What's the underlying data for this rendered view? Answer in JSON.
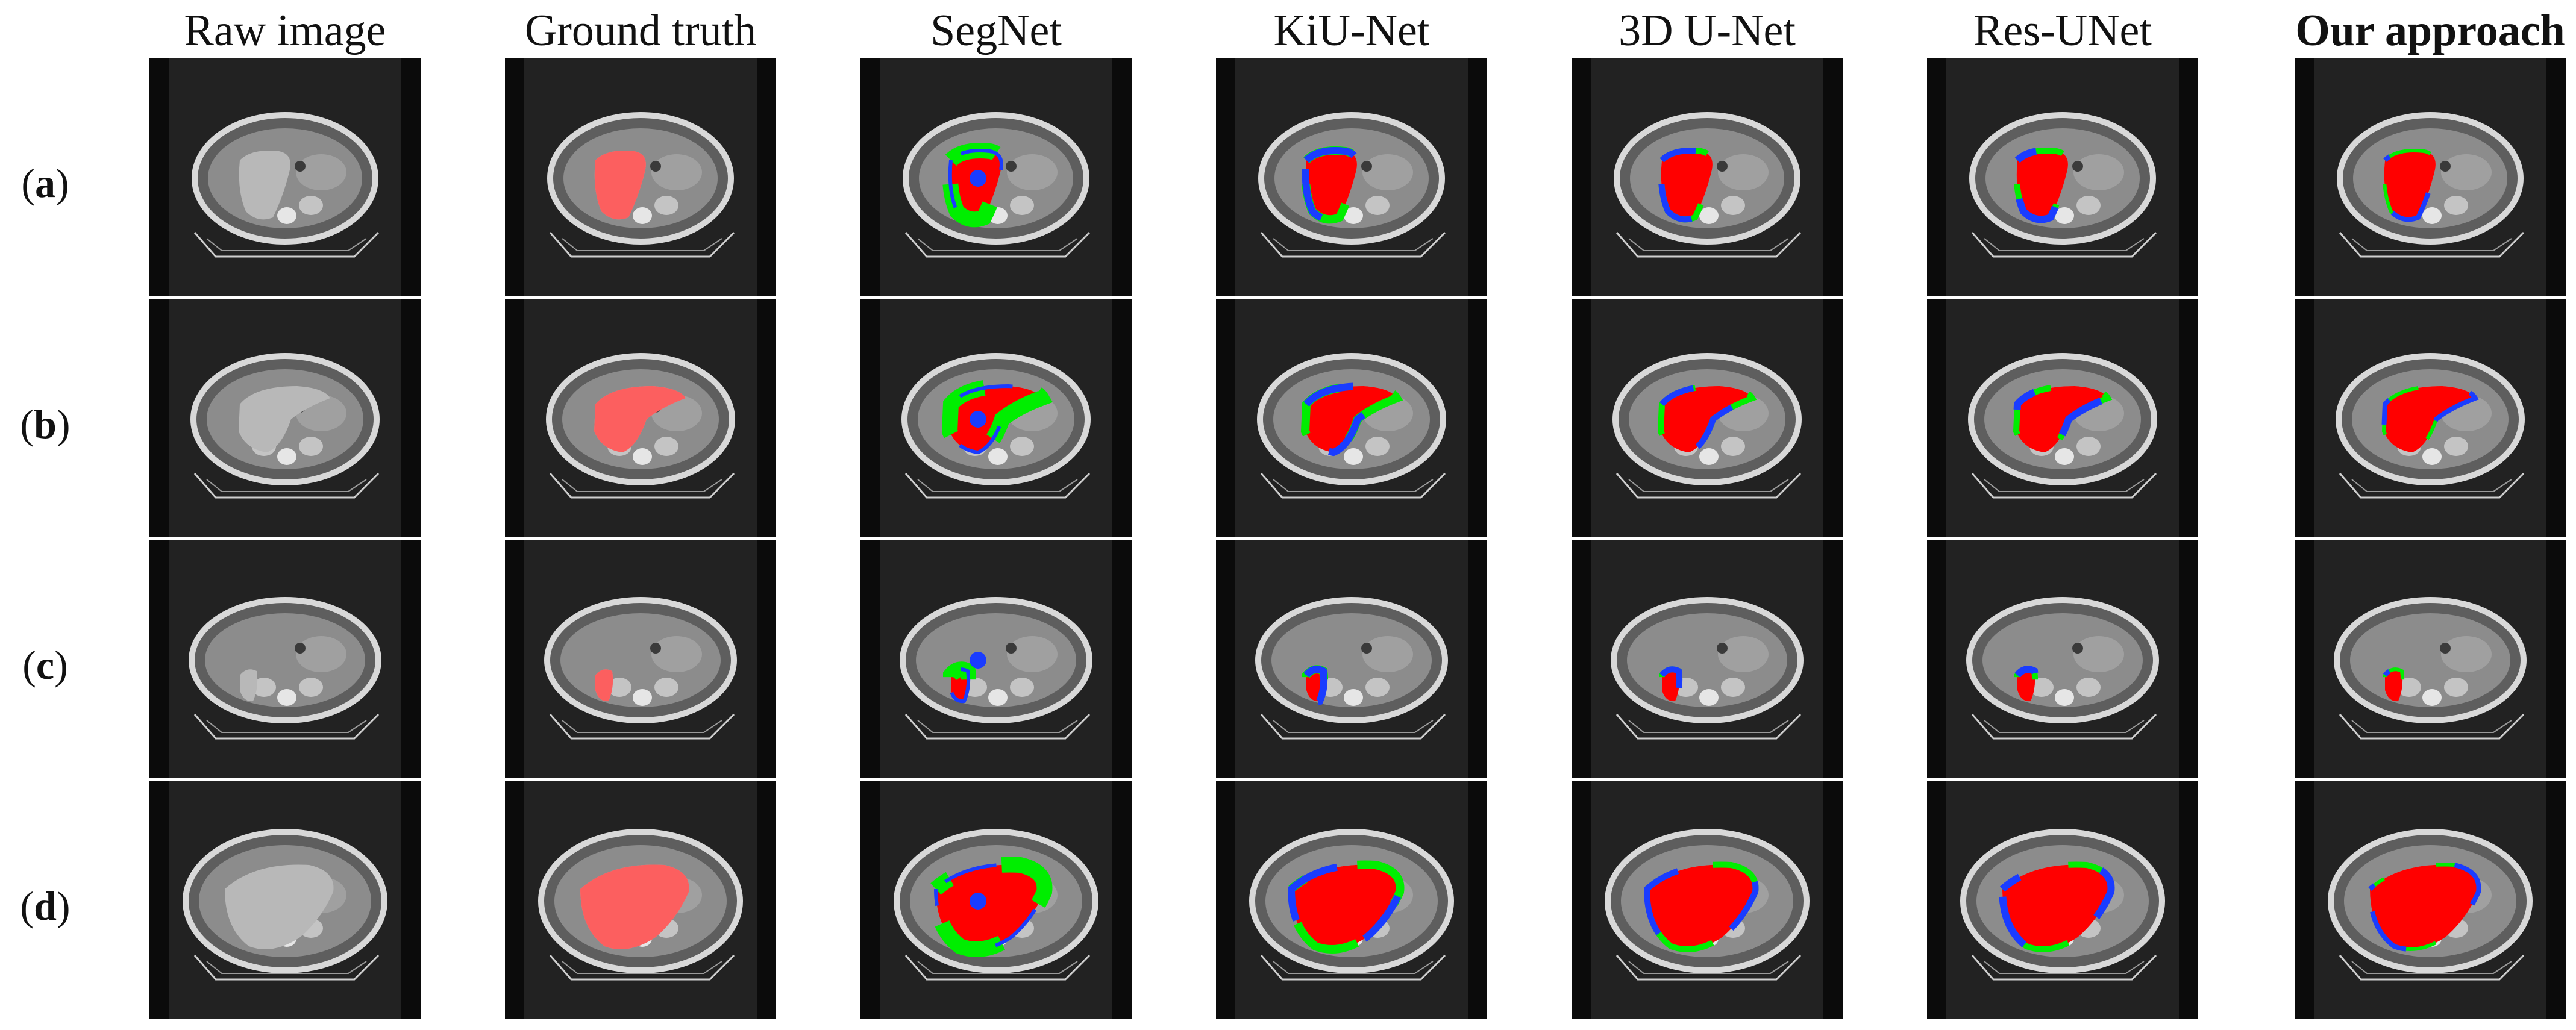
{
  "columns": [
    {
      "id": "raw",
      "label": "Raw image",
      "bold": false
    },
    {
      "id": "gt",
      "label": "Ground truth",
      "bold": false
    },
    {
      "id": "segnet",
      "label": "SegNet",
      "bold": false
    },
    {
      "id": "kiunet",
      "label": "KiU-Net",
      "bold": false
    },
    {
      "id": "unet3d",
      "label": "3D U-Net",
      "bold": false
    },
    {
      "id": "resunet",
      "label": "Res-UNet",
      "bold": false
    },
    {
      "id": "ours",
      "label": "Our approach",
      "bold": true
    }
  ],
  "rows": [
    {
      "id": "a",
      "open": "(",
      "letter": "a",
      "close": ")"
    },
    {
      "id": "b",
      "open": "(",
      "letter": "b",
      "close": ")"
    },
    {
      "id": "c",
      "open": "(",
      "letter": "c",
      "close": ")"
    },
    {
      "id": "d",
      "open": "(",
      "letter": "d",
      "close": ")"
    }
  ],
  "colors": {
    "background": "#222222",
    "side_bar": "#0b0b0b",
    "body": "#8c8c8c",
    "body_edge": "#d8d8d8",
    "liver_raw": "#b8b8b8",
    "ground_truth": "#ff5a5a",
    "true_positive": "#ff0000",
    "false_negative": "#00ee00",
    "false_positive": "#1a3cff"
  }
}
